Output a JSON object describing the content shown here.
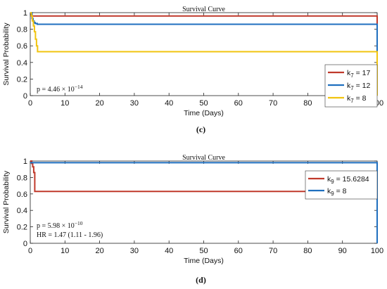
{
  "chart_data": [
    {
      "type": "line",
      "step": true,
      "title": "Survival Curve",
      "xlabel": "Time (Days)",
      "ylabel": "Survival Probability",
      "xlim": [
        0,
        100
      ],
      "ylim": [
        0,
        1
      ],
      "xticks": [
        0,
        10,
        20,
        30,
        40,
        50,
        60,
        70,
        80,
        90,
        100
      ],
      "yticks": [
        0,
        0.2,
        0.4,
        0.6,
        0.8,
        1
      ],
      "grid": false,
      "legend_position": "right",
      "caption": "(c)",
      "annotations": [
        {
          "base": "p = 4.46",
          "times": "×",
          "pow": "10",
          "exp": "−14"
        }
      ],
      "series": [
        {
          "name": "k7 = 17",
          "label_sym": "k",
          "label_sub": "7",
          "label_rest": " = 17",
          "color": "#c0392b",
          "x": [
            0,
            100,
            100
          ],
          "y": [
            0.96,
            0.96,
            0
          ]
        },
        {
          "name": "k7 = 12",
          "label_sym": "k",
          "label_sub": "7",
          "label_rest": " = 12",
          "color": "#1f6fbf",
          "x": [
            0,
            0.5,
            0.5,
            0.8,
            0.8,
            1.1,
            1.1,
            1.4,
            1.4,
            2.0,
            2.0,
            100,
            100
          ],
          "y": [
            1,
            1,
            0.93,
            0.93,
            0.9,
            0.9,
            0.88,
            0.88,
            0.87,
            0.87,
            0.86,
            0.86,
            0
          ]
        },
        {
          "name": "k7 = 8",
          "label_sym": "k",
          "label_sub": "7",
          "label_rest": " = 8",
          "color": "#f1c40f",
          "x": [
            0,
            0.3,
            0.3,
            0.6,
            0.6,
            0.9,
            0.9,
            1.2,
            1.2,
            1.5,
            1.5,
            1.8,
            1.8,
            2.1,
            2.1,
            100,
            100
          ],
          "y": [
            1,
            1,
            0.96,
            0.96,
            0.9,
            0.9,
            0.84,
            0.84,
            0.77,
            0.77,
            0.68,
            0.68,
            0.6,
            0.6,
            0.53,
            0.53,
            0
          ]
        }
      ]
    },
    {
      "type": "line",
      "step": true,
      "title": "Survival Curve",
      "xlabel": "Time (Days)",
      "ylabel": "Survival Probability",
      "xlim": [
        0,
        100
      ],
      "ylim": [
        0,
        1
      ],
      "xticks": [
        0,
        10,
        20,
        30,
        40,
        50,
        60,
        70,
        80,
        90,
        100
      ],
      "yticks": [
        0,
        0.2,
        0.4,
        0.6,
        0.8,
        1
      ],
      "grid": false,
      "legend_position": "top-right",
      "caption": "(d)",
      "annotations": [
        {
          "base": "p = 5.98",
          "times": "×",
          "pow": "10",
          "exp": "−10"
        },
        {
          "text": "HR = 1.47 (1.11 - 1.96)"
        }
      ],
      "series": [
        {
          "name": "k9 = 15.6284",
          "label_sym": "k",
          "label_sub": "9",
          "label_rest": " = 15.6284",
          "color": "#c0392b",
          "x": [
            0,
            0.4,
            0.4,
            0.7,
            0.7,
            1.0,
            1.0,
            1.3,
            1.3,
            100
          ],
          "y": [
            1,
            1,
            0.97,
            0.97,
            0.93,
            0.93,
            0.86,
            0.86,
            0.63,
            0.63
          ]
        },
        {
          "name": "k9 = 8",
          "label_sym": "k",
          "label_sub": "9",
          "label_rest": " = 8",
          "color": "#1f6fbf",
          "x": [
            0,
            100,
            100
          ],
          "y": [
            0.98,
            0.98,
            0
          ]
        }
      ]
    }
  ]
}
